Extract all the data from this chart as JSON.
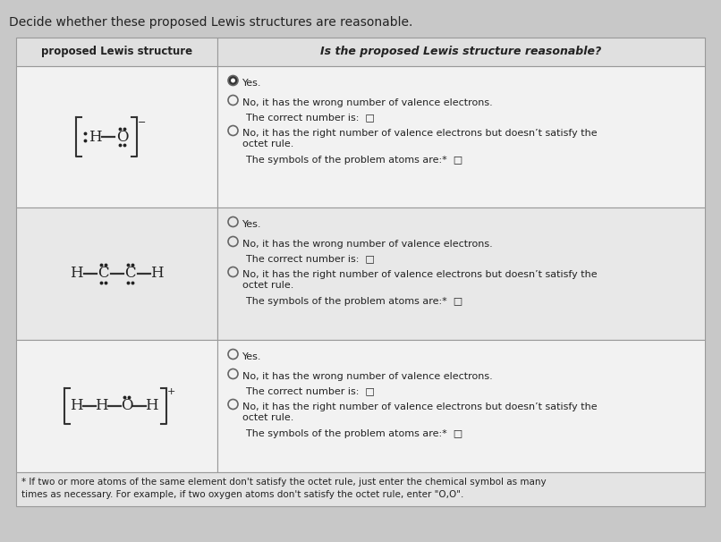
{
  "title": "Decide whether these proposed Lewis structures are reasonable.",
  "col1_header": "proposed Lewis structure",
  "col2_header": "Is the proposed Lewis structure reasonable?",
  "page_bg": "#c8c8c8",
  "table_bg": "#f0f0f0",
  "header_bg": "#e0e0e0",
  "row1_bg": "#f2f2f2",
  "row2_bg": "#e8e8e8",
  "row3_bg": "#f2f2f2",
  "footer_bg": "#e4e4e4",
  "border_color": "#999999",
  "text_color": "#222222",
  "footer_text1": "* If two or more atoms of the same element don't satisfy the octet rule, just enter the chemical symbol as many",
  "footer_text2": "times as necessary. For example, if two oxygen atoms don't satisfy the octet rule, enter \"O,O\".",
  "rows": [
    {
      "options": [
        {
          "filled": true,
          "radio": true,
          "text": "Yes.",
          "indent": false
        },
        {
          "filled": false,
          "radio": true,
          "text": "No, it has the wrong number of valence electrons.",
          "indent": false
        },
        {
          "filled": false,
          "radio": false,
          "text": "The correct number is:  □",
          "indent": true
        },
        {
          "filled": false,
          "radio": true,
          "text": "No, it has the right number of valence electrons but doesn’t satisfy the\noctet rule.",
          "indent": false
        },
        {
          "filled": false,
          "radio": false,
          "text": "The symbols of the problem atoms are:*  □",
          "indent": true
        }
      ]
    },
    {
      "options": [
        {
          "filled": false,
          "radio": true,
          "text": "Yes.",
          "indent": false
        },
        {
          "filled": false,
          "radio": true,
          "text": "No, it has the wrong number of valence electrons.",
          "indent": false
        },
        {
          "filled": false,
          "radio": false,
          "text": "The correct number is:  □",
          "indent": true
        },
        {
          "filled": false,
          "radio": true,
          "text": "No, it has the right number of valence electrons but doesn’t satisfy the\noctet rule.",
          "indent": false
        },
        {
          "filled": false,
          "radio": false,
          "text": "The symbols of the problem atoms are:*  □",
          "indent": true
        }
      ]
    },
    {
      "options": [
        {
          "filled": false,
          "radio": true,
          "text": "Yes.",
          "indent": false
        },
        {
          "filled": false,
          "radio": true,
          "text": "No, it has the wrong number of valence electrons.",
          "indent": false
        },
        {
          "filled": false,
          "radio": false,
          "text": "The correct number is:  □",
          "indent": true
        },
        {
          "filled": false,
          "radio": true,
          "text": "No, it has the right number of valence electrons but doesn’t satisfy the\noctet rule.",
          "indent": false
        },
        {
          "filled": false,
          "radio": false,
          "text": "The symbols of the problem atoms are:*  □",
          "indent": true
        }
      ]
    }
  ]
}
